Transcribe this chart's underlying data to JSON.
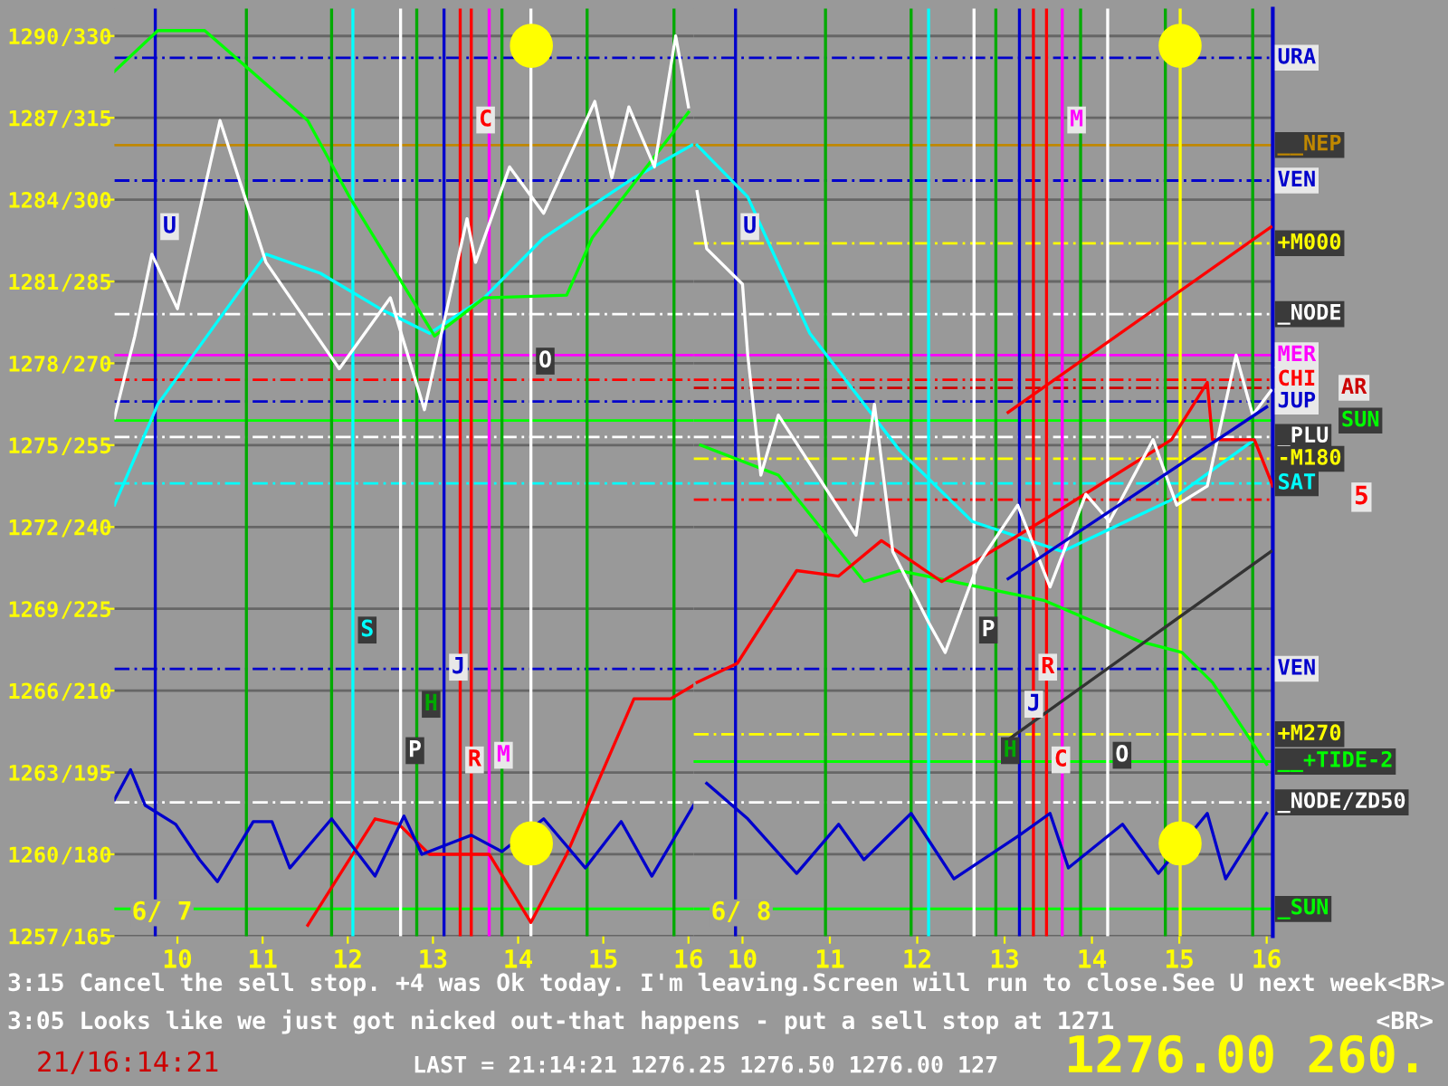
{
  "chart_data": [
    {
      "type": "line",
      "xlim": [
        9.26,
        16.06
      ],
      "ylim": [
        1257,
        1291
      ],
      "xticks": [
        10,
        11,
        12,
        13,
        14,
        15,
        16
      ],
      "yticks": [
        1290,
        1287,
        1284,
        1281,
        1278,
        1275,
        1272,
        1269,
        1266,
        1263,
        1260,
        1257
      ],
      "y2lim": [
        165,
        335
      ],
      "y2ticks": [
        {
          "value": 330,
          "label": "/330"
        },
        {
          "value": 315,
          "label": "/315"
        },
        {
          "value": 300,
          "label": "/300"
        },
        {
          "value": 285,
          "label": "/285"
        },
        {
          "value": 270,
          "label": "/270"
        },
        {
          "value": 255,
          "label": "/255"
        },
        {
          "value": 240,
          "label": "/240"
        },
        {
          "value": 225,
          "label": "/225"
        },
        {
          "value": 210,
          "label": "/210"
        },
        {
          "value": 195,
          "label": "/195"
        },
        {
          "value": 180,
          "label": "/180"
        },
        {
          "value": 165,
          "label": "/165"
        }
      ],
      "grid": "y",
      "series": [
        {
          "color": "#00ffff",
          "x": [
            9.26,
            9.77,
            11.04,
            11.68,
            12.38,
            12.96,
            13.6,
            14.3,
            15.36,
            16.04
          ],
          "values": [
            1272.8,
            1276.5,
            1282,
            1281.3,
            1280,
            1279.1,
            1280.4,
            1282.6,
            1284.8,
            1286
          ]
        },
        {
          "color": "#00ff00",
          "x": [
            9.26,
            9.77,
            10.32,
            11.53,
            12.02,
            13.02,
            13.6,
            14.57,
            14.87,
            16.0
          ],
          "values": [
            1288.7,
            1290.2,
            1290.2,
            1286.9,
            1284.1,
            1279,
            1280.4,
            1280.5,
            1282.6,
            1287.2
          ]
        },
        {
          "color": "#ff0000",
          "x": [
            11.53,
            12.32,
            12.6,
            12.96,
            13.66,
            14.15,
            14.57,
            15.36,
            15.79,
            16.06
          ],
          "values": [
            1257.4,
            1261.3,
            1261.1,
            1260,
            1260,
            1257.5,
            1260,
            1265.7,
            1265.7,
            1266.2
          ]
        },
        {
          "color": "#0000cc",
          "x": [
            9.26,
            9.45,
            9.62,
            9.98,
            10.26,
            10.47,
            10.89,
            11.11,
            11.32,
            11.81,
            12.32,
            12.66,
            12.87,
            13.45,
            13.81,
            14.3,
            14.79,
            15.21,
            15.57,
            16.06
          ],
          "values": [
            1262,
            1263.1,
            1261.8,
            1261.1,
            1259.8,
            1259,
            1261.2,
            1261.2,
            1259.5,
            1261.3,
            1259.2,
            1261.4,
            1260,
            1260.7,
            1260.1,
            1261.3,
            1259.5,
            1261.2,
            1259.2,
            1261.8
          ]
        },
        {
          "color": "#ffffff",
          "x": [
            9.26,
            9.5,
            9.7,
            10.0,
            10.5,
            11.04,
            11.9,
            12.5,
            12.9,
            13.4,
            13.5,
            13.9,
            14.3,
            14.9,
            15.1,
            15.3,
            15.6,
            15.85,
            16.0
          ],
          "values": [
            1276,
            1279,
            1282,
            1280,
            1286.9,
            1281.7,
            1277.8,
            1280.4,
            1276.3,
            1283.3,
            1281.7,
            1285.2,
            1283.5,
            1287.6,
            1284.8,
            1287.4,
            1285.2,
            1290,
            1287.4
          ]
        }
      ],
      "ref_lines": [
        {
          "axis": "y",
          "value": 1289.2,
          "color": "#0000cc",
          "line_style": "dashed"
        },
        {
          "axis": "y",
          "value": 1286,
          "color": "#c08800"
        },
        {
          "axis": "y",
          "value": 1284.7,
          "color": "#0000cc",
          "line_style": "dashed"
        },
        {
          "axis": "y",
          "value": 1279.8,
          "color": "#ffffff",
          "line_style": "dashed"
        },
        {
          "axis": "y",
          "value": 1278.3,
          "color": "#ff00ff"
        },
        {
          "axis": "y",
          "value": 1277.4,
          "color": "#ff0000",
          "line_style": "dashed"
        },
        {
          "axis": "y",
          "value": 1276.6,
          "color": "#0000cc",
          "line_style": "dashed"
        },
        {
          "axis": "y",
          "value": 1275.9,
          "color": "#00ff00"
        },
        {
          "axis": "y",
          "value": 1275.3,
          "color": "#ffffff",
          "line_style": "dashed"
        },
        {
          "axis": "y",
          "value": 1273.6,
          "color": "#00ffff",
          "line_style": "dashed"
        },
        {
          "axis": "y",
          "value": 1266.8,
          "color": "#0000cc",
          "line_style": "dashed"
        },
        {
          "axis": "y",
          "value": 1261.9,
          "color": "#ffffff",
          "line_style": "dashed"
        },
        {
          "axis": "y",
          "value": 1258,
          "color": "#00ff00"
        },
        {
          "axis": "x",
          "value": 9.74,
          "label": "U",
          "color": "#0000cc"
        },
        {
          "axis": "x",
          "value": 10.81,
          "color": "#00aa00"
        },
        {
          "axis": "x",
          "value": 11.81,
          "color": "#00aa00"
        },
        {
          "axis": "x",
          "value": 12.06,
          "label": "S",
          "color": "#00ffff"
        },
        {
          "axis": "x",
          "value": 12.62,
          "label": "P",
          "color": "#ffffff"
        },
        {
          "axis": "x",
          "value": 12.81,
          "label": "H",
          "color": "#00aa00"
        },
        {
          "axis": "x",
          "value": 13.13,
          "label": "J",
          "color": "#0000cc"
        },
        {
          "axis": "x",
          "value": 13.32,
          "label": "R",
          "color": "#ff0000"
        },
        {
          "axis": "x",
          "value": 13.45,
          "label": "C",
          "color": "#ff0000"
        },
        {
          "axis": "x",
          "value": 13.66,
          "label": "M",
          "color": "#ff00ff"
        },
        {
          "axis": "x",
          "value": 13.81,
          "color": "#00aa00"
        },
        {
          "axis": "x",
          "value": 14.15,
          "label": "O",
          "color": "#ffffff"
        },
        {
          "axis": "x",
          "value": 14.81,
          "color": "#00aa00"
        },
        {
          "axis": "x",
          "value": 15.83,
          "color": "#00aa00"
        }
      ],
      "annotations": [
        "6/ 7"
      ]
    },
    {
      "type": "line",
      "xlim": [
        9.44,
        16.07
      ],
      "ylim": [
        1257,
        1291
      ],
      "xticks": [
        10,
        11,
        12,
        13,
        14,
        15,
        16
      ],
      "yticks": [
        1290,
        1287,
        1284,
        1281,
        1278,
        1275,
        1272,
        1269,
        1266,
        1263,
        1260,
        1257
      ],
      "tick_labels": "x",
      "grid": "y",
      "series": [
        {
          "color": "#00ffff",
          "x": [
            9.48,
            10.06,
            10.77,
            11.8,
            12.63,
            13.66,
            14.91,
            15.86
          ],
          "values": [
            1286,
            1284.1,
            1279.1,
            1274.8,
            1272.2,
            1271.1,
            1273,
            1275.2
          ]
        },
        {
          "color": "#00ff00",
          "x": [
            9.52,
            10.41,
            11.39,
            11.8,
            13.46,
            14.55,
            15.03,
            15.38,
            16.0
          ],
          "values": [
            1275,
            1273.9,
            1270,
            1270.4,
            1269.3,
            1267.8,
            1267.4,
            1266.3,
            1263.3
          ]
        },
        {
          "color": "#ff0000",
          "x": [
            9.48,
            9.94,
            10.62,
            11.1,
            11.59,
            12.28,
            13.52,
            14.91,
            15.32,
            15.38,
            15.86,
            16.07
          ],
          "values": [
            1266.3,
            1267,
            1270.4,
            1270.2,
            1271.5,
            1270,
            1272.4,
            1275.2,
            1277.3,
            1275.2,
            1275.2,
            1273.5
          ]
        },
        {
          "color": "#0000cc",
          "x": [
            9.59,
            10.06,
            10.62,
            11.1,
            11.39,
            11.93,
            12.42,
            13.17,
            13.52,
            13.73,
            14.35,
            14.76,
            15.32,
            15.53,
            16.0
          ],
          "values": [
            1262.6,
            1261.3,
            1259.3,
            1261.1,
            1259.8,
            1261.5,
            1259.1,
            1260.7,
            1261.5,
            1259.5,
            1261.1,
            1259.3,
            1261.5,
            1259.1,
            1261.5
          ]
        },
        {
          "color": "#ffffff",
          "x": [
            9.48,
            9.59,
            10.0,
            10.06,
            10.21,
            10.41,
            11.3,
            11.51,
            11.72,
            12.13,
            12.32,
            12.69,
            13.15,
            13.52,
            13.93,
            14.2,
            14.7,
            14.97,
            15.32,
            15.65,
            15.84,
            16.05
          ],
          "values": [
            1284.3,
            1282.2,
            1280.9,
            1278.3,
            1273.9,
            1276.1,
            1271.7,
            1276.5,
            1271.1,
            1268.5,
            1267.4,
            1270.6,
            1272.8,
            1269.8,
            1273.2,
            1272.2,
            1275.2,
            1272.8,
            1273.5,
            1278.3,
            1276.1,
            1277
          ]
        },
        {
          "color": "#ff0000",
          "x": [
            13.04,
            16.05
          ],
          "values": [
            1276.2,
            1283
          ]
        },
        {
          "color": "#333333",
          "x": [
            13.04,
            16.05
          ],
          "values": [
            1264.2,
            1271.1
          ]
        },
        {
          "color": "#0000cc",
          "x": [
            13.04,
            16.0
          ],
          "values": [
            1270.1,
            1276.4
          ]
        }
      ],
      "ref_lines": [
        {
          "axis": "y",
          "value": 1289.2,
          "label": "URA",
          "color": "#0000cc",
          "line_style": "dashed"
        },
        {
          "axis": "y",
          "value": 1286,
          "label": "__NEP",
          "color": "#c08800"
        },
        {
          "axis": "y",
          "value": 1284.7,
          "label": "VEN",
          "color": "#0000cc",
          "line_style": "dashed"
        },
        {
          "axis": "y",
          "value": 1282.4,
          "label": "+M000",
          "color": "#ffff00",
          "line_style": "dashed"
        },
        {
          "axis": "y",
          "value": 1279.8,
          "label": "_NODE",
          "color": "#ffffff",
          "line_style": "dashed"
        },
        {
          "axis": "y",
          "value": 1278.3,
          "label": "MER",
          "color": "#ff00ff"
        },
        {
          "axis": "y",
          "value": 1277.4,
          "label": "CHI",
          "color": "#ff0000",
          "line_style": "dashed"
        },
        {
          "axis": "y",
          "value": 1277.1,
          "label": "AR",
          "color": "#cc0000",
          "line_style": "dashed"
        },
        {
          "axis": "y",
          "value": 1276.6,
          "label": "JUP",
          "color": "#0000cc",
          "line_style": "dashed"
        },
        {
          "axis": "y",
          "value": 1275.9,
          "label": "SUN",
          "color": "#00ff00"
        },
        {
          "axis": "y",
          "value": 1275.3,
          "label": "_PLU",
          "color": "#ffffff",
          "line_style": "dashed"
        },
        {
          "axis": "y",
          "value": 1274.5,
          "label": "-M180",
          "color": "#ffff00",
          "line_style": "dashed"
        },
        {
          "axis": "y",
          "value": 1273.6,
          "label": "SAT",
          "color": "#00ffff",
          "line_style": "dashed"
        },
        {
          "axis": "y",
          "value": 1273.0,
          "color": "#ff0000",
          "line_style": "dashed"
        },
        {
          "axis": "y",
          "value": 1266.8,
          "label": "VEN",
          "color": "#0000cc",
          "line_style": "dashed"
        },
        {
          "axis": "y",
          "value": 1264.4,
          "label": "+M270",
          "color": "#ffff00",
          "line_style": "dashed"
        },
        {
          "axis": "y",
          "value": 1263.4,
          "label": "__+TIDE-2",
          "color": "#00ff00"
        },
        {
          "axis": "y",
          "value": 1261.9,
          "label": "_NODE/ZD50",
          "color": "#ffffff",
          "line_style": "dashed"
        },
        {
          "axis": "y",
          "value": 1258,
          "label": "_SUN",
          "color": "#00ff00"
        },
        {
          "axis": "x",
          "value": 9.92,
          "label": "U",
          "color": "#0000cc"
        },
        {
          "axis": "x",
          "value": 10.95,
          "color": "#00aa00"
        },
        {
          "axis": "x",
          "value": 11.93,
          "color": "#00aa00"
        },
        {
          "axis": "x",
          "value": 12.13,
          "color": "#00ffff"
        },
        {
          "axis": "x",
          "value": 12.65,
          "label": "P",
          "color": "#ffffff"
        },
        {
          "axis": "x",
          "value": 12.9,
          "label": "H",
          "color": "#00aa00"
        },
        {
          "axis": "x",
          "value": 13.17,
          "label": "J",
          "color": "#0000cc"
        },
        {
          "axis": "x",
          "value": 13.33,
          "label": "R",
          "color": "#ff0000"
        },
        {
          "axis": "x",
          "value": 13.48,
          "label": "C",
          "color": "#ff0000"
        },
        {
          "axis": "x",
          "value": 13.66,
          "label": "M",
          "color": "#ff00ff"
        },
        {
          "axis": "x",
          "value": 13.87,
          "color": "#00aa00"
        },
        {
          "axis": "x",
          "value": 14.18,
          "label": "O",
          "color": "#ffffff"
        },
        {
          "axis": "x",
          "value": 14.84,
          "color": "#00aa00"
        },
        {
          "axis": "x",
          "value": 15.01,
          "color": "#ffff00"
        },
        {
          "axis": "x",
          "value": 15.84,
          "color": "#00aa00"
        }
      ],
      "annotations": [
        "6/ 8",
        "5",
        "3:15 Cancel the sell stop. +4 was Ok today. I'm leaving.Screen will run to close.See U next week<BR>",
        "3:05 Looks like we just got nicked out-that happens - put a sell stop at 1271",
        "<BR>",
        "21/16:14:21",
        "LAST = 21:14:21 1276.25 1276.50 1276.00 127",
        "1276.00 260."
      ]
    }
  ]
}
